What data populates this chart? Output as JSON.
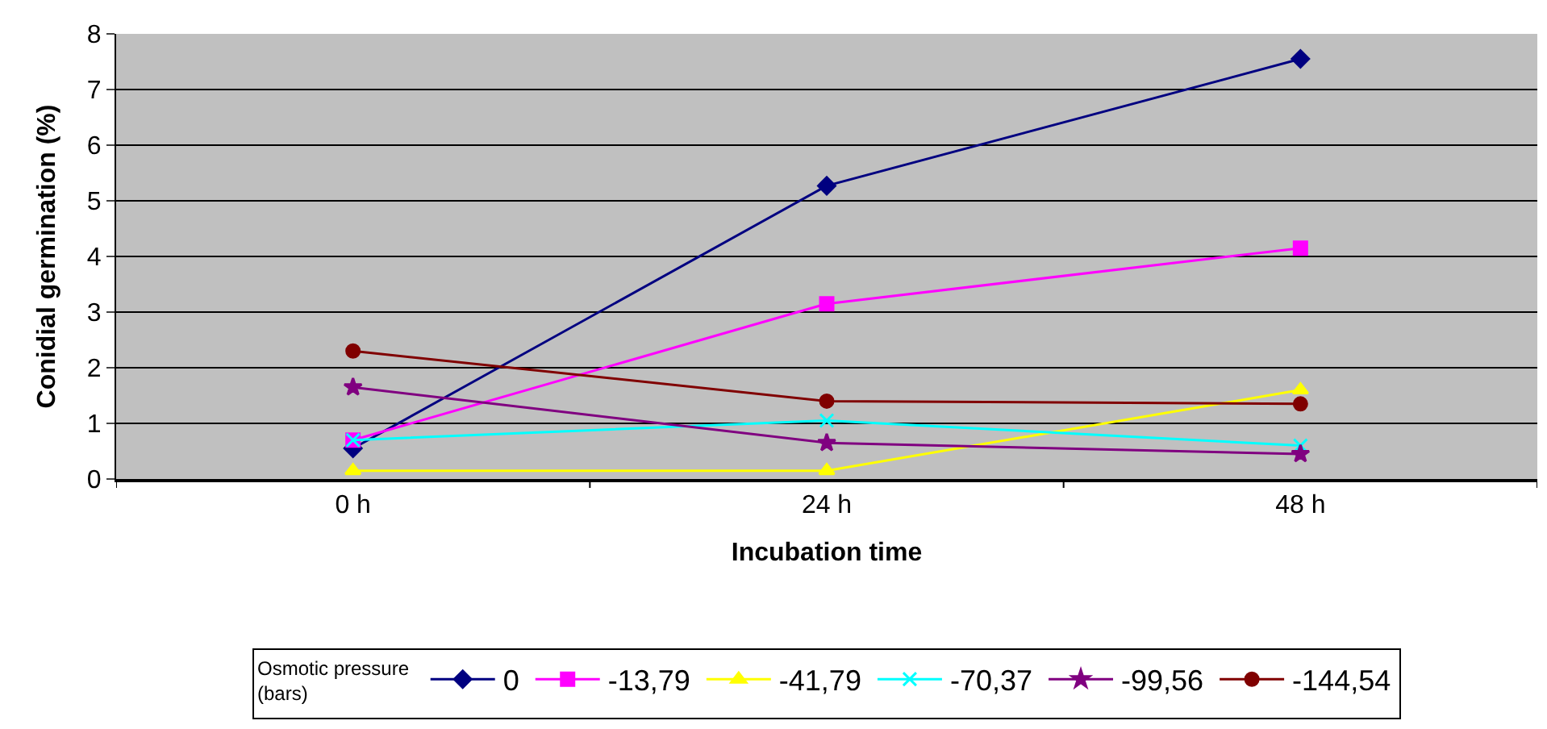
{
  "chart_data": {
    "type": "line",
    "xlabel": "Incubation time",
    "ylabel": "Conidial germination (%)",
    "legend_title": "Osmotic pressure (bars)",
    "categories": [
      "0 h",
      "24 h",
      "48 h"
    ],
    "series": [
      {
        "name": "0",
        "color": "#000080",
        "marker": "diamond",
        "values": [
          0.55,
          5.27,
          7.55
        ]
      },
      {
        "name": "-13,79",
        "color": "#ff00ff",
        "marker": "square",
        "values": [
          0.7,
          3.15,
          4.15
        ]
      },
      {
        "name": "-41,79",
        "color": "#ffff00",
        "marker": "triangle",
        "values": [
          0.15,
          0.15,
          1.6
        ]
      },
      {
        "name": "-70,37",
        "color": "#00ffff",
        "marker": "cross",
        "values": [
          0.7,
          1.05,
          0.6
        ]
      },
      {
        "name": "-99,56",
        "color": "#800080",
        "marker": "star",
        "values": [
          1.65,
          0.65,
          0.45
        ]
      },
      {
        "name": "-144,54",
        "color": "#800000",
        "marker": "circle",
        "values": [
          2.3,
          1.4,
          1.35
        ]
      }
    ],
    "ylim": [
      0,
      8
    ],
    "yticks": [
      0,
      1,
      2,
      3,
      4,
      5,
      6,
      7,
      8
    ],
    "grid": "y",
    "legend": "bottom"
  }
}
